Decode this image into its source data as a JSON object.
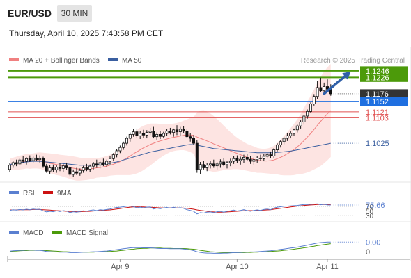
{
  "header": {
    "symbol": "EUR/USD",
    "timeframe": "30 MIN",
    "datetime": "Thursday, April 10, 2025 7:43:58 PM CET"
  },
  "legend": {
    "ma20_label": "MA 20 + Bollinger Bands",
    "ma50_label": "MA 50",
    "credit": "Research © 2025 Trading Central",
    "colors": {
      "ma20": "#f08080",
      "ma50": "#3a5fa0",
      "candle": "#111111",
      "band_fill": "#fde4e2"
    }
  },
  "levels": {
    "resistance_2": {
      "value": 1.1246,
      "label": "1.1246",
      "color": "#4c9a0a"
    },
    "resistance_1": {
      "value": 1.1226,
      "label": "1.1226",
      "color": "#4c9a0a"
    },
    "last": {
      "value": 1.1176,
      "label": "1.1176",
      "color": "#333333"
    },
    "pivot": {
      "value": 1.1152,
      "label": "1.1152",
      "color": "#1f6fe0"
    },
    "support_1": {
      "value": 1.1121,
      "label": "1.1121",
      "color": "#e05050"
    },
    "support_2": {
      "value": 1.1103,
      "label": "1.1103",
      "color": "#e05050"
    },
    "ma50_last": {
      "value": 1.1025,
      "label": "1.1025",
      "color": "#3a5fa0"
    }
  },
  "rsi_panel": {
    "rsi_label": "RSI",
    "ma9_label": "9MA",
    "rsi_color": "#5a7fd0",
    "ma9_color": "#cc1111",
    "value_label": "75.66",
    "level_70": "70",
    "level_50": "50",
    "level_30": "30"
  },
  "macd_panel": {
    "macd_label": "MACD",
    "signal_label": "MACD Signal",
    "macd_color": "#5a7fd0",
    "signal_color": "#4c9a0a",
    "value_label": "0.00",
    "zero_label": "0"
  },
  "x_axis": {
    "ticks": [
      {
        "label": "Apr 9",
        "index": 33
      },
      {
        "label": "Apr 10",
        "index": 68
      },
      {
        "label": "Apr 11",
        "index": 95
      }
    ]
  },
  "chart_data": {
    "type": "candlestick",
    "ylim": [
      1.0915,
      1.125
    ],
    "trend_arrow": {
      "from": [
        94,
        1.1176
      ],
      "to": [
        102,
        1.1244
      ]
    },
    "ohlc": [
      [
        1.0945,
        1.0965,
        1.0938,
        1.0958
      ],
      [
        1.0958,
        1.0972,
        1.095,
        1.0966
      ],
      [
        1.0966,
        1.0975,
        1.0955,
        1.0962
      ],
      [
        1.0962,
        1.098,
        1.0958,
        1.0974
      ],
      [
        1.0974,
        1.0985,
        1.0965,
        1.097
      ],
      [
        1.097,
        1.0982,
        1.096,
        1.0978
      ],
      [
        1.0978,
        1.0988,
        1.0968,
        1.0972
      ],
      [
        1.0972,
        1.0986,
        1.0965,
        1.098
      ],
      [
        1.098,
        1.099,
        1.097,
        1.0975
      ],
      [
        1.0975,
        1.0988,
        1.0966,
        1.0978
      ],
      [
        1.0978,
        1.0984,
        1.095,
        1.0955
      ],
      [
        1.0955,
        1.0962,
        1.0935,
        1.094
      ],
      [
        1.094,
        1.0958,
        1.0932,
        1.095
      ],
      [
        1.095,
        1.096,
        1.0938,
        1.0944
      ],
      [
        1.0944,
        1.0958,
        1.0935,
        1.0952
      ],
      [
        1.0952,
        1.0965,
        1.094,
        1.0948
      ],
      [
        1.0948,
        1.0962,
        1.0938,
        1.0956
      ],
      [
        1.0956,
        1.0966,
        1.0944,
        1.095
      ],
      [
        1.095,
        1.0955,
        1.0925,
        1.093
      ],
      [
        1.093,
        1.0945,
        1.0922,
        1.0938
      ],
      [
        1.0938,
        1.095,
        1.0928,
        1.0934
      ],
      [
        1.0934,
        1.0948,
        1.0926,
        1.0942
      ],
      [
        1.0942,
        1.0956,
        1.0935,
        1.095
      ],
      [
        1.095,
        1.0962,
        1.094,
        1.0946
      ],
      [
        1.0946,
        1.096,
        1.0938,
        1.0955
      ],
      [
        1.0955,
        1.0968,
        1.0945,
        1.0962
      ],
      [
        1.0962,
        1.0975,
        1.095,
        1.0958
      ],
      [
        1.0958,
        1.0972,
        1.0948,
        1.0966
      ],
      [
        1.0966,
        1.0978,
        1.0955,
        1.096
      ],
      [
        1.096,
        1.0975,
        1.0952,
        1.097
      ],
      [
        1.097,
        1.0985,
        1.096,
        1.0978
      ],
      [
        1.0978,
        1.0995,
        1.097,
        1.099
      ],
      [
        1.099,
        1.1008,
        1.0982,
        1.1002
      ],
      [
        1.1002,
        1.1018,
        1.0995,
        1.1012
      ],
      [
        1.1012,
        1.103,
        1.1005,
        1.1025
      ],
      [
        1.1025,
        1.1045,
        1.1018,
        1.104
      ],
      [
        1.104,
        1.1058,
        1.103,
        1.1052
      ],
      [
        1.1052,
        1.1068,
        1.1045,
        1.106
      ],
      [
        1.106,
        1.107,
        1.104,
        1.1048
      ],
      [
        1.1048,
        1.1062,
        1.1038,
        1.1055
      ],
      [
        1.1055,
        1.1066,
        1.1042,
        1.105
      ],
      [
        1.105,
        1.1065,
        1.104,
        1.1058
      ],
      [
        1.1058,
        1.1072,
        1.105,
        1.1062
      ],
      [
        1.1062,
        1.1075,
        1.104,
        1.1045
      ],
      [
        1.1045,
        1.1058,
        1.1035,
        1.1052
      ],
      [
        1.1052,
        1.1062,
        1.1038,
        1.1046
      ],
      [
        1.1046,
        1.106,
        1.104,
        1.1055
      ],
      [
        1.1055,
        1.1068,
        1.1048,
        1.1062
      ],
      [
        1.1062,
        1.1072,
        1.1052,
        1.1058
      ],
      [
        1.1058,
        1.107,
        1.1045,
        1.1066
      ],
      [
        1.1066,
        1.108,
        1.105,
        1.106
      ],
      [
        1.106,
        1.1075,
        1.1048,
        1.1068
      ],
      [
        1.1068,
        1.1078,
        1.1055,
        1.1062
      ],
      [
        1.1062,
        1.107,
        1.104,
        1.1045
      ],
      [
        1.1045,
        1.1055,
        1.103,
        1.104
      ],
      [
        1.104,
        1.105,
        1.102,
        1.1025
      ],
      [
        1.1025,
        1.1035,
        1.0935,
        1.0945
      ],
      [
        1.0945,
        1.0968,
        1.093,
        1.096
      ],
      [
        1.096,
        1.0972,
        1.0945,
        1.095
      ],
      [
        1.095,
        1.0965,
        1.094,
        1.0958
      ],
      [
        1.0958,
        1.097,
        1.0948,
        1.0962
      ],
      [
        1.0962,
        1.0975,
        1.095,
        1.0956
      ],
      [
        1.0956,
        1.0968,
        1.0945,
        1.0962
      ],
      [
        1.0962,
        1.0976,
        1.095,
        1.0968
      ],
      [
        1.0968,
        1.098,
        1.0955,
        1.096
      ],
      [
        1.096,
        1.0972,
        1.0948,
        1.0966
      ],
      [
        1.0966,
        1.0978,
        1.0955,
        1.097
      ],
      [
        1.097,
        1.0985,
        1.0962,
        1.0978
      ],
      [
        1.0978,
        1.0988,
        1.0965,
        1.0972
      ],
      [
        1.0972,
        1.0984,
        1.096,
        1.0976
      ],
      [
        1.0976,
        1.099,
        1.0965,
        1.0982
      ],
      [
        1.0982,
        1.0992,
        1.097,
        1.0976
      ],
      [
        1.0976,
        1.0985,
        1.0962,
        1.097
      ],
      [
        1.097,
        1.0982,
        1.096,
        1.0975
      ],
      [
        1.0975,
        1.0986,
        1.0966,
        1.098
      ],
      [
        1.098,
        1.099,
        1.097,
        1.0978
      ],
      [
        1.0978,
        1.0992,
        1.0972,
        1.0985
      ],
      [
        1.0985,
        1.0996,
        1.0978,
        1.099
      ],
      [
        1.099,
        1.1,
        1.098,
        1.0986
      ],
      [
        1.0986,
        1.101,
        1.098,
        1.1005
      ],
      [
        1.1005,
        1.1025,
        1.1,
        1.102
      ],
      [
        1.102,
        1.1035,
        1.1012,
        1.103
      ],
      [
        1.103,
        1.1045,
        1.1022,
        1.104
      ],
      [
        1.104,
        1.1055,
        1.1032,
        1.1048
      ],
      [
        1.1048,
        1.1062,
        1.104,
        1.1055
      ],
      [
        1.1055,
        1.107,
        1.1048,
        1.1066
      ],
      [
        1.1066,
        1.1082,
        1.1058,
        1.1078
      ],
      [
        1.1078,
        1.1095,
        1.107,
        1.109
      ],
      [
        1.109,
        1.1112,
        1.1082,
        1.1108
      ],
      [
        1.1108,
        1.1128,
        1.11,
        1.1122
      ],
      [
        1.1122,
        1.115,
        1.1118,
        1.1145
      ],
      [
        1.1145,
        1.1175,
        1.114,
        1.1168
      ],
      [
        1.1168,
        1.1215,
        1.116,
        1.1195
      ],
      [
        1.1195,
        1.1225,
        1.118,
        1.1185
      ],
      [
        1.1185,
        1.121,
        1.1175,
        1.1198
      ],
      [
        1.1198,
        1.122,
        1.1182,
        1.119
      ],
      [
        1.119,
        1.1205,
        1.117,
        1.1176
      ]
    ],
    "ma50": [
      1.096,
      1.0962,
      1.0964,
      1.0966,
      1.0967,
      1.0968,
      1.0969,
      1.097,
      1.097,
      1.097,
      1.0969,
      1.0968,
      1.0967,
      1.0966,
      1.0965,
      1.0964,
      1.0963,
      1.0962,
      1.0961,
      1.096,
      1.0959,
      1.0958,
      1.0958,
      1.0958,
      1.0958,
      1.0959,
      1.096,
      1.0961,
      1.0962,
      1.0963,
      1.0964,
      1.0966,
      1.0968,
      1.0971,
      1.0974,
      1.0977,
      1.098,
      1.0983,
      1.0986,
      1.0989,
      1.0992,
      1.0995,
      1.0998,
      1.1,
      1.1002,
      1.1004,
      1.1006,
      1.1008,
      1.101,
      1.1012,
      1.1014,
      1.1016,
      1.1018,
      1.102,
      1.1021,
      1.1021,
      1.1019,
      1.1017,
      1.1015,
      1.1013,
      1.1011,
      1.1009,
      1.1008,
      1.1007,
      1.1006,
      1.1005,
      1.1004,
      1.1003,
      1.1002,
      1.1001,
      1.1,
      1.0999,
      1.0998,
      1.0997,
      1.0996,
      1.0996,
      1.0996,
      1.0996,
      1.0996,
      1.0996,
      1.0997,
      1.0998,
      1.0999,
      1.1,
      1.1001,
      1.1003,
      1.1005,
      1.1007,
      1.1009,
      1.1011,
      1.1013,
      1.1015,
      1.1017,
      1.1019,
      1.1021,
      1.1023,
      1.1025
    ],
    "ma20": [
      1.096,
      1.0962,
      1.0964,
      1.0966,
      1.0968,
      1.097,
      1.097,
      1.0971,
      1.0972,
      1.0972,
      1.097,
      1.0967,
      1.0964,
      1.0962,
      1.096,
      1.0958,
      1.0956,
      1.0954,
      1.0951,
      1.0949,
      1.0947,
      1.0946,
      1.0946,
      1.0946,
      1.0947,
      1.0948,
      1.095,
      1.0951,
      1.0953,
      1.0955,
      1.0958,
      1.0961,
      1.0965,
      1.0969,
      1.0974,
      1.098,
      1.0986,
      1.0993,
      1.0999,
      1.1005,
      1.1011,
      1.1016,
      1.1021,
      1.1025,
      1.1029,
      1.1032,
      1.1035,
      1.1038,
      1.1041,
      1.1043,
      1.1045,
      1.1047,
      1.1049,
      1.105,
      1.105,
      1.1049,
      1.1044,
      1.104,
      1.1036,
      1.1032,
      1.1028,
      1.1023,
      1.1019,
      1.1015,
      1.1011,
      1.1007,
      1.1002,
      1.0998,
      1.0994,
      1.099,
      1.0986,
      1.0982,
      1.0979,
      1.0976,
      1.0973,
      1.0972,
      1.0971,
      1.0971,
      1.0972,
      1.0974,
      1.0978,
      1.0982,
      1.0987,
      1.0993,
      1.0999,
      1.1006,
      1.1014,
      1.1023,
      1.1033,
      1.1044,
      1.1055,
      1.1067,
      1.108,
      1.1092,
      1.1104,
      1.1115,
      1.1125
    ],
    "bb_width": [
      0.0018,
      0.0019,
      0.002,
      0.0021,
      0.0022,
      0.0022,
      0.0023,
      0.0023,
      0.0024,
      0.0025,
      0.0026,
      0.0028,
      0.003,
      0.0031,
      0.0032,
      0.0032,
      0.0033,
      0.0034,
      0.0035,
      0.0036,
      0.0036,
      0.0035,
      0.0034,
      0.0033,
      0.0032,
      0.0031,
      0.003,
      0.003,
      0.003,
      0.0031,
      0.0032,
      0.0034,
      0.0037,
      0.0041,
      0.0046,
      0.0052,
      0.0058,
      0.0063,
      0.0066,
      0.0068,
      0.0068,
      0.0066,
      0.0064,
      0.006,
      0.0056,
      0.0052,
      0.0048,
      0.0045,
      0.0043,
      0.0042,
      0.0042,
      0.0043,
      0.0045,
      0.0048,
      0.0052,
      0.0056,
      0.0075,
      0.0085,
      0.009,
      0.009,
      0.0088,
      0.0085,
      0.008,
      0.0074,
      0.0068,
      0.0062,
      0.0057,
      0.0052,
      0.0048,
      0.0045,
      0.0043,
      0.0041,
      0.004,
      0.0039,
      0.0038,
      0.0037,
      0.0037,
      0.0038,
      0.004,
      0.0043,
      0.0048,
      0.0054,
      0.006,
      0.0066,
      0.0072,
      0.0078,
      0.0084,
      0.0092,
      0.01,
      0.0108,
      0.0115,
      0.0122,
      0.013,
      0.0136,
      0.014,
      0.0142,
      0.0142
    ],
    "rsi": [
      52,
      55,
      53,
      56,
      54,
      57,
      55,
      58,
      56,
      57,
      50,
      45,
      48,
      46,
      50,
      47,
      51,
      49,
      42,
      46,
      44,
      47,
      50,
      48,
      52,
      54,
      51,
      55,
      53,
      56,
      58,
      62,
      65,
      66,
      68,
      70,
      71,
      69,
      63,
      66,
      63,
      66,
      67,
      58,
      62,
      59,
      63,
      65,
      62,
      66,
      62,
      64,
      61,
      55,
      52,
      48,
      36,
      42,
      40,
      44,
      45,
      42,
      46,
      48,
      44,
      48,
      50,
      53,
      49,
      52,
      55,
      51,
      48,
      52,
      54,
      52,
      56,
      58,
      55,
      62,
      66,
      68,
      70,
      71,
      72,
      73,
      74,
      76,
      78,
      78,
      79,
      80,
      81,
      77,
      79,
      76,
      75.66
    ],
    "rsi_ma9": [
      54,
      54,
      54,
      55,
      55,
      55,
      55,
      56,
      56,
      56,
      55,
      54,
      53,
      52,
      51,
      50,
      49,
      48,
      47,
      47,
      46,
      46,
      47,
      47,
      48,
      49,
      50,
      51,
      52,
      53,
      54,
      56,
      58,
      60,
      62,
      64,
      66,
      67,
      67,
      67,
      67,
      66,
      66,
      65,
      64,
      63,
      63,
      63,
      63,
      63,
      63,
      63,
      62,
      61,
      59,
      57,
      54,
      52,
      50,
      48,
      46,
      45,
      44,
      44,
      44,
      45,
      46,
      47,
      48,
      49,
      50,
      51,
      51,
      51,
      51,
      52,
      53,
      54,
      55,
      57,
      59,
      61,
      63,
      65,
      67,
      69,
      71,
      72,
      74,
      75,
      76,
      77,
      78,
      78,
      78,
      78,
      77
    ],
    "macd": [
      -0.0002,
      0.0,
      0.0001,
      0.0002,
      0.0002,
      0.0003,
      0.0003,
      0.0003,
      0.0002,
      0.0002,
      0.0,
      -0.0003,
      -0.0004,
      -0.0005,
      -0.0005,
      -0.0006,
      -0.0006,
      -0.0006,
      -0.0008,
      -0.0008,
      -0.0008,
      -0.0007,
      -0.0006,
      -0.0006,
      -0.0005,
      -0.0004,
      -0.0004,
      -0.0003,
      -0.0002,
      -0.0001,
      0.0001,
      0.0003,
      0.0005,
      0.0007,
      0.0009,
      0.0011,
      0.0013,
      0.0014,
      0.0014,
      0.0014,
      0.0013,
      0.0013,
      0.0013,
      0.0012,
      0.0011,
      0.001,
      0.001,
      0.001,
      0.0009,
      0.0009,
      0.0009,
      0.0009,
      0.0008,
      0.0006,
      0.0004,
      0.0001,
      -0.0004,
      -0.0007,
      -0.0009,
      -0.001,
      -0.001,
      -0.0011,
      -0.0011,
      -0.0011,
      -0.001,
      -0.001,
      -0.0009,
      -0.0008,
      -0.0008,
      -0.0007,
      -0.0006,
      -0.0006,
      -0.0005,
      -0.0005,
      -0.0004,
      -0.0003,
      -0.0002,
      -0.0001,
      0.0,
      0.0002,
      0.0004,
      0.0006,
      0.0008,
      0.001,
      0.0012,
      0.0014,
      0.0016,
      0.0019,
      0.0022,
      0.0025,
      0.0028,
      0.0031,
      0.0034,
      0.0036,
      0.0037,
      0.0038,
      0.0038
    ],
    "macd_signal": [
      -0.0003,
      -0.0002,
      -0.0001,
      0.0,
      0.0001,
      0.0001,
      0.0002,
      0.0002,
      0.0002,
      0.0002,
      0.0002,
      0.0001,
      0.0,
      -0.0001,
      -0.0002,
      -0.0003,
      -0.0004,
      -0.0004,
      -0.0005,
      -0.0006,
      -0.0006,
      -0.0006,
      -0.0006,
      -0.0006,
      -0.0006,
      -0.0006,
      -0.0005,
      -0.0005,
      -0.0004,
      -0.0004,
      -0.0003,
      -0.0002,
      -0.0001,
      0.0001,
      0.0002,
      0.0004,
      0.0006,
      0.0007,
      0.0009,
      0.001,
      0.0011,
      0.0011,
      0.0012,
      0.0012,
      0.0012,
      0.0012,
      0.0011,
      0.0011,
      0.0011,
      0.001,
      0.001,
      0.001,
      0.001,
      0.0009,
      0.0008,
      0.0007,
      0.0005,
      0.0002,
      0.0,
      -0.0002,
      -0.0004,
      -0.0005,
      -0.0006,
      -0.0007,
      -0.0008,
      -0.0008,
      -0.0008,
      -0.0008,
      -0.0008,
      -0.0008,
      -0.0008,
      -0.0007,
      -0.0007,
      -0.0006,
      -0.0006,
      -0.0005,
      -0.0005,
      -0.0004,
      -0.0003,
      -0.0002,
      -0.0001,
      0.0,
      0.0002,
      0.0003,
      0.0005,
      0.0007,
      0.0009,
      0.0011,
      0.0013,
      0.0015,
      0.0018,
      0.002,
      0.0023,
      0.0025,
      0.0027,
      0.0029,
      0.0031
    ]
  }
}
